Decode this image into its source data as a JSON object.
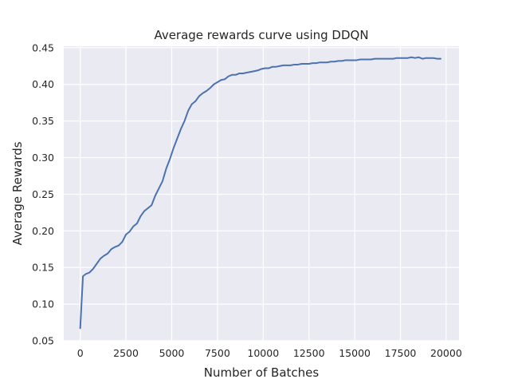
{
  "chart_data": {
    "type": "line",
    "title": "Average rewards curve using DDQN",
    "xlabel": "Number of Batches",
    "ylabel": "Average Rewards",
    "xlim": [
      -900,
      20700
    ],
    "ylim": [
      0.05,
      0.452
    ],
    "xticks": [
      0,
      2500,
      5000,
      7500,
      10000,
      12500,
      15000,
      17500,
      20000
    ],
    "yticks": [
      0.05,
      0.1,
      0.15,
      0.2,
      0.25,
      0.3,
      0.35,
      0.4,
      0.45
    ],
    "xtick_labels": [
      "0",
      "2500",
      "5000",
      "7500",
      "10000",
      "12500",
      "15000",
      "17500",
      "20000"
    ],
    "ytick_labels": [
      "0.05",
      "0.10",
      "0.15",
      "0.20",
      "0.25",
      "0.30",
      "0.35",
      "0.40",
      "0.45"
    ],
    "grid": true,
    "background": "#EAEAF2",
    "series": [
      {
        "color": "#4C72B0",
        "x": [
          0,
          150,
          300,
          500,
          700,
          900,
          1100,
          1300,
          1500,
          1700,
          1900,
          2100,
          2300,
          2500,
          2700,
          2900,
          3100,
          3300,
          3500,
          3700,
          3900,
          4100,
          4300,
          4500,
          4700,
          4900,
          5100,
          5300,
          5500,
          5700,
          5900,
          6100,
          6300,
          6500,
          6700,
          6900,
          7100,
          7300,
          7500,
          7700,
          7900,
          8100,
          8300,
          8500,
          8700,
          8900,
          9100,
          9300,
          9500,
          9700,
          9900,
          10100,
          10300,
          10500,
          10700,
          10900,
          11100,
          11300,
          11500,
          11700,
          11900,
          12100,
          12300,
          12500,
          12700,
          12900,
          13100,
          13300,
          13500,
          13700,
          13900,
          14100,
          14300,
          14500,
          14700,
          14900,
          15100,
          15300,
          15500,
          15700,
          15900,
          16100,
          16300,
          16500,
          16700,
          16900,
          17100,
          17300,
          17500,
          17700,
          17900,
          18100,
          18300,
          18500,
          18700,
          18900,
          19100,
          19300,
          19500,
          19700
        ],
        "y": [
          0.067,
          0.138,
          0.141,
          0.143,
          0.148,
          0.155,
          0.162,
          0.166,
          0.169,
          0.175,
          0.178,
          0.18,
          0.185,
          0.195,
          0.199,
          0.206,
          0.21,
          0.22,
          0.227,
          0.231,
          0.235,
          0.248,
          0.258,
          0.268,
          0.285,
          0.298,
          0.313,
          0.326,
          0.339,
          0.35,
          0.364,
          0.373,
          0.377,
          0.384,
          0.388,
          0.391,
          0.395,
          0.4,
          0.403,
          0.406,
          0.407,
          0.411,
          0.413,
          0.413,
          0.415,
          0.415,
          0.416,
          0.417,
          0.418,
          0.419,
          0.421,
          0.422,
          0.422,
          0.424,
          0.424,
          0.425,
          0.426,
          0.426,
          0.426,
          0.427,
          0.427,
          0.428,
          0.428,
          0.428,
          0.429,
          0.429,
          0.43,
          0.43,
          0.43,
          0.431,
          0.431,
          0.432,
          0.432,
          0.433,
          0.433,
          0.433,
          0.433,
          0.434,
          0.434,
          0.434,
          0.434,
          0.435,
          0.435,
          0.435,
          0.435,
          0.435,
          0.435,
          0.436,
          0.436,
          0.436,
          0.436,
          0.437,
          0.436,
          0.437,
          0.435,
          0.436,
          0.436,
          0.436,
          0.435,
          0.435
        ]
      }
    ]
  }
}
